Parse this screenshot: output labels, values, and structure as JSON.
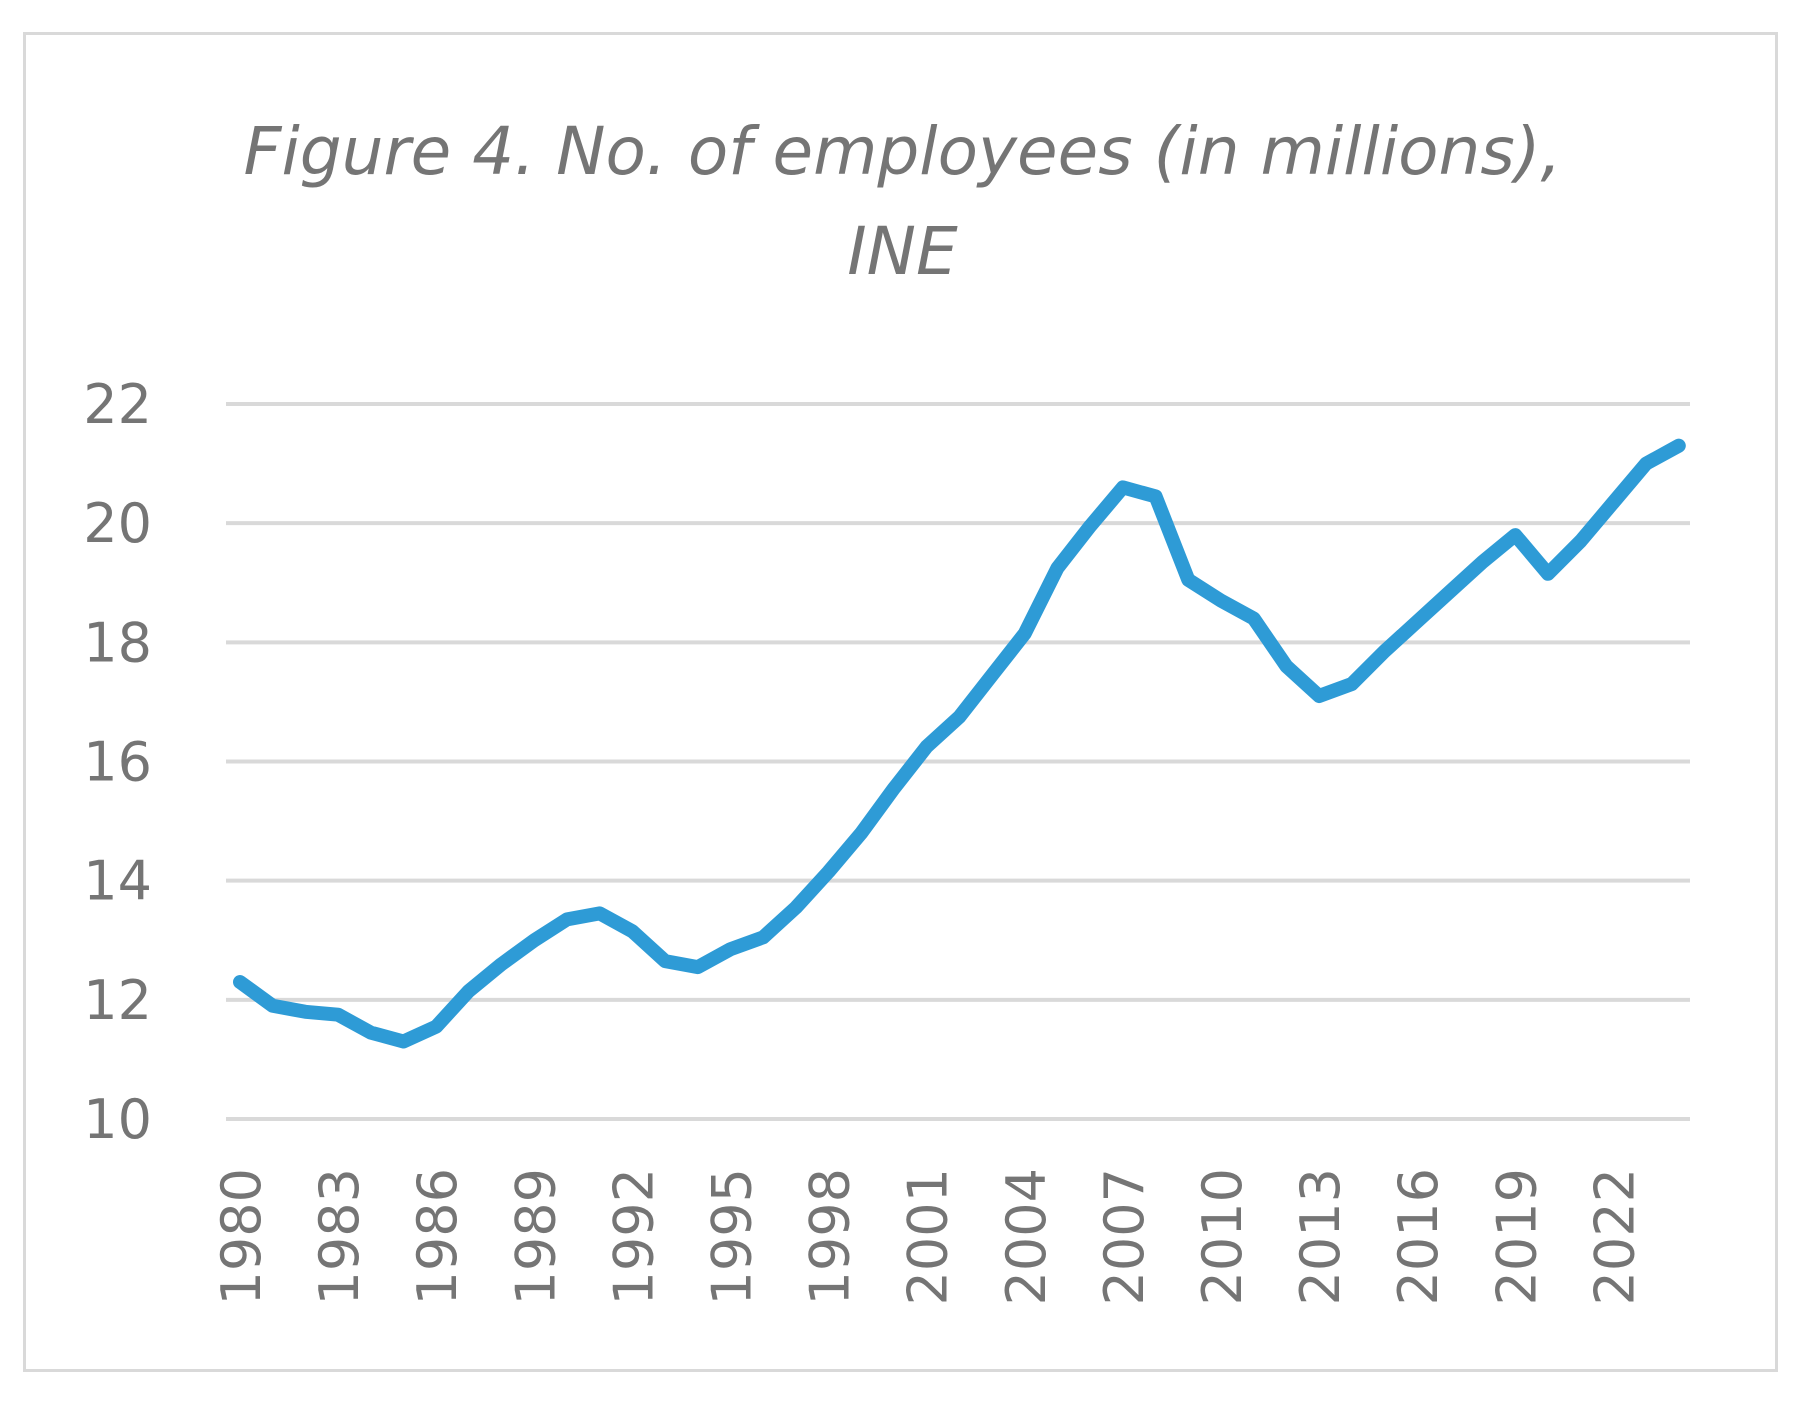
{
  "chart_data": {
    "type": "line",
    "title": "Figure 4. No. of employees (in millions),\nINE",
    "xlabel": "",
    "ylabel": "",
    "ylim": [
      10,
      22
    ],
    "yticks": [
      "10",
      "12",
      "14",
      "16",
      "18",
      "20",
      "22"
    ],
    "xtick_labels": [
      "1980",
      "1983",
      "1986",
      "1989",
      "1992",
      "1995",
      "1998",
      "2001",
      "2004",
      "2007",
      "2010",
      "2013",
      "2016",
      "2019",
      "2022"
    ],
    "grid": true,
    "legend": "none",
    "line_color": "#2e9bd6",
    "x": [
      1980,
      1981,
      1982,
      1983,
      1984,
      1985,
      1986,
      1987,
      1988,
      1989,
      1990,
      1991,
      1992,
      1993,
      1994,
      1995,
      1996,
      1997,
      1998,
      1999,
      2000,
      2001,
      2002,
      2003,
      2004,
      2005,
      2006,
      2007,
      2008,
      2009,
      2010,
      2011,
      2012,
      2013,
      2014,
      2015,
      2016,
      2017,
      2018,
      2019,
      2020,
      2021,
      2022,
      2023,
      2024
    ],
    "series": [
      {
        "values": [
          12.3,
          11.9,
          11.8,
          11.75,
          11.45,
          11.3,
          11.55,
          12.15,
          12.6,
          13.0,
          13.35,
          13.45,
          13.15,
          12.65,
          12.55,
          12.85,
          13.05,
          13.55,
          14.15,
          14.8,
          15.55,
          16.25,
          16.75,
          17.45,
          18.15,
          19.25,
          19.95,
          20.6,
          20.45,
          19.05,
          18.7,
          18.4,
          17.6,
          17.1,
          17.3,
          17.85,
          18.35,
          18.85,
          19.35,
          19.8,
          19.15,
          19.7,
          20.35,
          21.0,
          21.3
        ]
      }
    ]
  }
}
